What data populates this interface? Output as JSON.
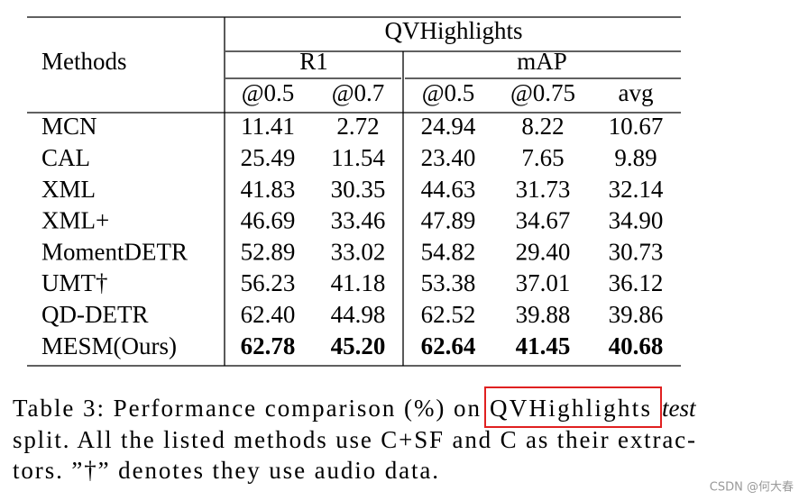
{
  "table": {
    "title": "QVHighlights",
    "methods_header": "Methods",
    "groups": [
      "R1",
      "mAP"
    ],
    "subheaders": [
      "@0.5",
      "@0.7",
      "@0.5",
      "@0.75",
      "avg"
    ],
    "rows": [
      {
        "method": "MCN",
        "values": [
          "11.41",
          "2.72",
          "24.94",
          "8.22",
          "10.67"
        ]
      },
      {
        "method": "CAL",
        "values": [
          "25.49",
          "11.54",
          "23.40",
          "7.65",
          "9.89"
        ]
      },
      {
        "method": "XML",
        "values": [
          "41.83",
          "30.35",
          "44.63",
          "31.73",
          "32.14"
        ]
      },
      {
        "method": "XML+",
        "values": [
          "46.69",
          "33.46",
          "47.89",
          "34.67",
          "34.90"
        ]
      },
      {
        "method": "MomentDETR",
        "values": [
          "52.89",
          "33.02",
          "54.82",
          "29.40",
          "30.73"
        ]
      },
      {
        "method": "UMT†",
        "values": [
          "56.23",
          "41.18",
          "53.38",
          "37.01",
          "36.12"
        ]
      },
      {
        "method": "QD-DETR",
        "values": [
          "62.40",
          "44.98",
          "62.52",
          "39.88",
          "39.86"
        ]
      },
      {
        "method": "MESM(Ours)",
        "values": [
          "62.78",
          "45.20",
          "62.64",
          "41.45",
          "40.68"
        ]
      }
    ]
  },
  "caption": {
    "prefix": "Table 3: Performance comparison (%) on",
    "highlight": "QVHighlights",
    "italic": "test",
    "line2": "split. All the listed methods use C+SF and C as their extrac-",
    "line3": "tors. ”†” denotes they use audio data."
  },
  "watermark": "CSDN @何大春"
}
